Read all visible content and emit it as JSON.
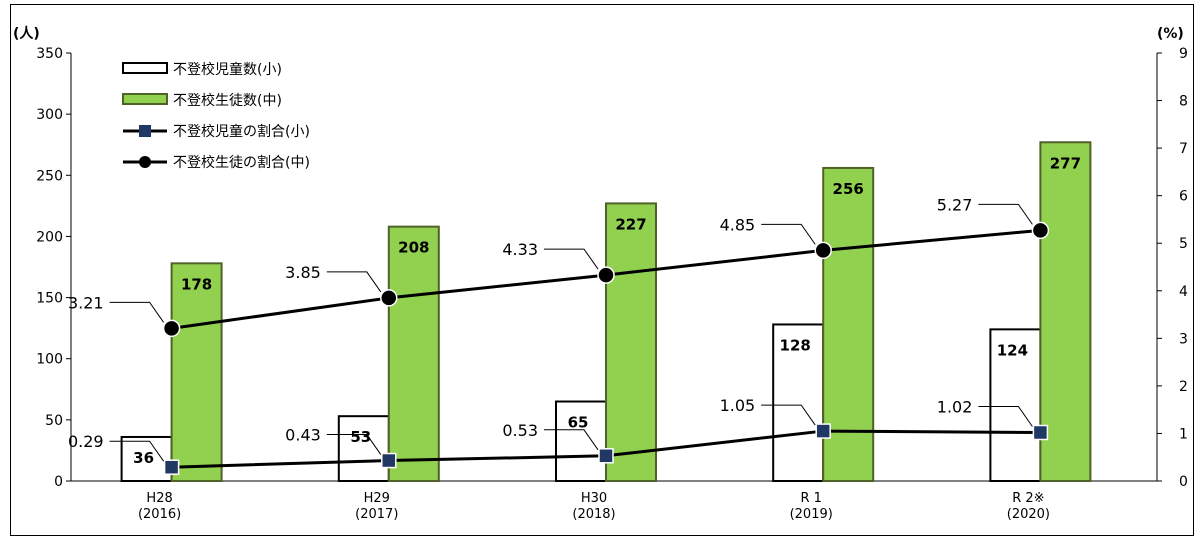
{
  "chart_data": {
    "type": "bar",
    "categories": [
      {
        "line1": "H28",
        "line2": "(2016)"
      },
      {
        "line1": "H29",
        "line2": "(2017)"
      },
      {
        "line1": "H30",
        "line2": "(2018)"
      },
      {
        "line1": "R 1",
        "line2": "(2019)"
      },
      {
        "line1": "R 2※",
        "line2": "(2020)"
      }
    ],
    "left_axis": {
      "unit": "(人)",
      "ylim": [
        0,
        350
      ],
      "ticks": [
        "0",
        "50",
        "100",
        "150",
        "200",
        "250",
        "300",
        "350"
      ]
    },
    "right_axis": {
      "unit": "(%)",
      "ylim": [
        0,
        9
      ],
      "ticks": [
        "0",
        "1",
        "2",
        "3",
        "4",
        "5",
        "6",
        "7",
        "8",
        "9"
      ]
    },
    "series": [
      {
        "name": "不登校児童数(小)",
        "kind": "bar",
        "axis": "left",
        "values": [
          36,
          53,
          65,
          128,
          124
        ],
        "labels": [
          "36",
          "53",
          "65",
          "128",
          "124"
        ],
        "color": "#ffffff",
        "stroke": "#000000"
      },
      {
        "name": "不登校生徒数(中)",
        "kind": "bar",
        "axis": "left",
        "values": [
          178,
          208,
          227,
          256,
          277
        ],
        "labels": [
          "178",
          "208",
          "227",
          "256",
          "277"
        ],
        "color": "#92d050",
        "stroke": "#4f6228"
      },
      {
        "name": "不登校児童の割合(小)",
        "kind": "line",
        "marker": "square",
        "axis": "right",
        "values": [
          0.29,
          0.43,
          0.53,
          1.05,
          1.02
        ],
        "labels": [
          "0.29",
          "0.43",
          "0.53",
          "1.05",
          "1.02"
        ],
        "color": "#000000",
        "marker_color": "#1f3864"
      },
      {
        "name": "不登校生徒の割合(中)",
        "kind": "line",
        "marker": "circle",
        "axis": "right",
        "values": [
          3.21,
          3.85,
          4.33,
          4.85,
          5.27
        ],
        "labels": [
          "3.21",
          "3.85",
          "4.33",
          "4.85",
          "5.27"
        ],
        "color": "#000000",
        "marker_color": "#000000"
      }
    ],
    "legend": {
      "position": "top-left"
    },
    "grid": false
  }
}
